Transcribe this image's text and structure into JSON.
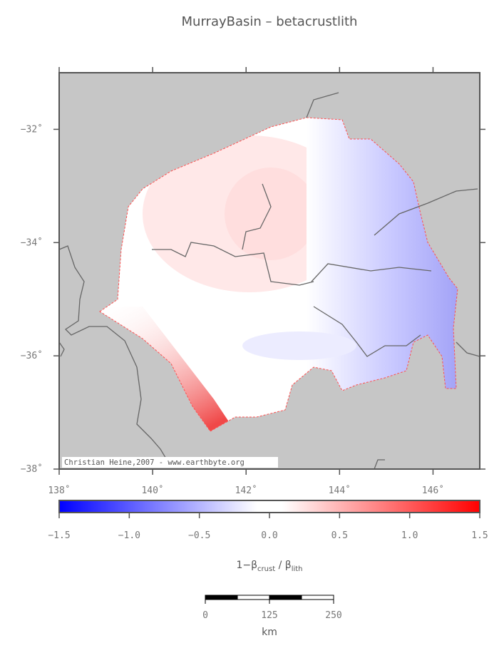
{
  "title": "MurrayBasin – betacrustlith",
  "map": {
    "xlim": [
      138,
      147
    ],
    "ylim": [
      -38,
      -31
    ],
    "xticks": [
      {
        "value": 138,
        "label": "138˚"
      },
      {
        "value": 140,
        "label": "140˚"
      },
      {
        "value": 142,
        "label": "142˚"
      },
      {
        "value": 144,
        "label": "144˚"
      },
      {
        "value": 146,
        "label": "146˚"
      }
    ],
    "yticks": [
      {
        "value": -32,
        "label": "−32˚"
      },
      {
        "value": -34,
        "label": "−34˚"
      },
      {
        "value": -36,
        "label": "−36˚"
      },
      {
        "value": -38,
        "label": "−38˚"
      }
    ],
    "credit": "Christian Heine,2007 - www.earthbyte.org"
  },
  "colorbar": {
    "lim": [
      -1.5,
      1.5
    ],
    "ticks": [
      {
        "value": -1.5,
        "label": "−1.5"
      },
      {
        "value": -1,
        "label": "−1.0"
      },
      {
        "value": -0.5,
        "label": "−0.5"
      },
      {
        "value": 0,
        "label": "0.0"
      },
      {
        "value": 0.5,
        "label": "0.5"
      },
      {
        "value": 1,
        "label": "1.0"
      },
      {
        "value": 1.5,
        "label": "1.5"
      }
    ],
    "label": {
      "lead": "1−β",
      "sub1": "crust",
      "mid": " / β",
      "sub2": "lith"
    }
  },
  "scalebar": {
    "lim": [
      0,
      250
    ],
    "ticks": [
      0,
      125,
      250
    ],
    "unit": "km"
  }
}
